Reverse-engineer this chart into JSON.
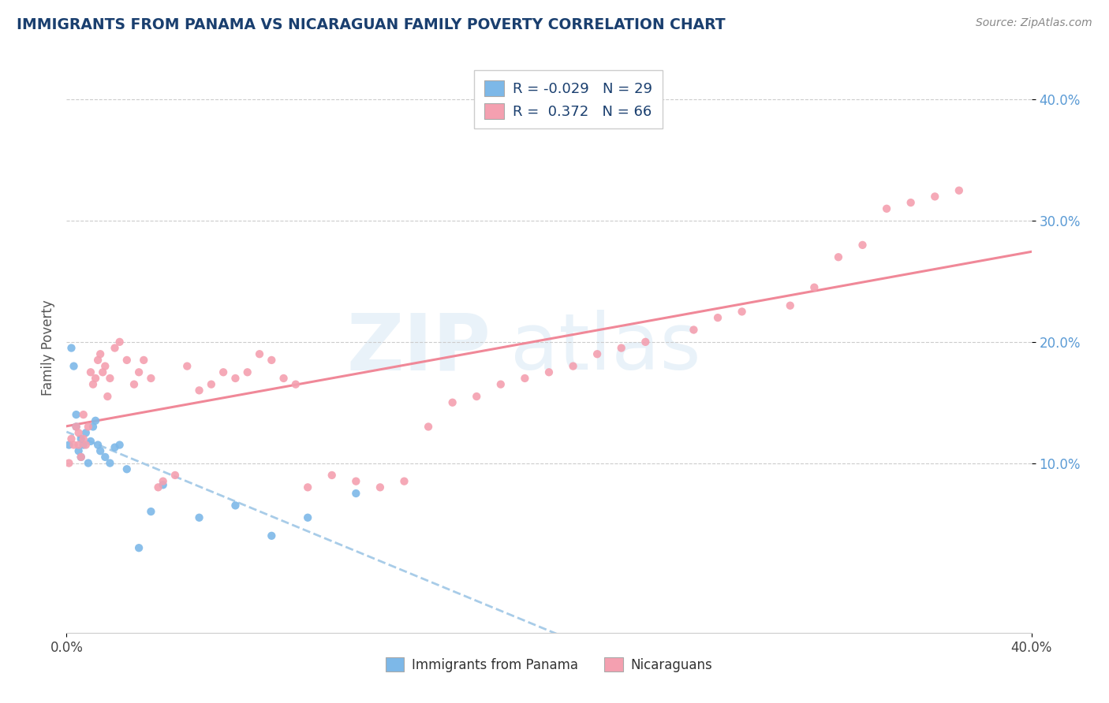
{
  "title": "IMMIGRANTS FROM PANAMA VS NICARAGUAN FAMILY POVERTY CORRELATION CHART",
  "source": "Source: ZipAtlas.com",
  "ylabel": "Family Poverty",
  "legend_label1": "Immigrants from Panama",
  "legend_label2": "Nicaraguans",
  "R1": -0.029,
  "N1": 29,
  "R2": 0.372,
  "N2": 66,
  "color_panama": "#7db8e8",
  "color_nicaragua": "#f4a0b0",
  "color_panama_line": "#a8cce8",
  "color_nicaragua_line": "#f08898",
  "xmin": 0.0,
  "xmax": 0.4,
  "ymin": -0.04,
  "ymax": 0.43,
  "yticks": [
    0.1,
    0.2,
    0.3,
    0.4
  ],
  "ytick_labels": [
    "10.0%",
    "20.0%",
    "30.0%",
    "40.0%"
  ],
  "panama_x": [
    0.001,
    0.002,
    0.003,
    0.004,
    0.004,
    0.005,
    0.006,
    0.006,
    0.007,
    0.008,
    0.009,
    0.01,
    0.011,
    0.012,
    0.013,
    0.014,
    0.016,
    0.018,
    0.02,
    0.022,
    0.025,
    0.03,
    0.035,
    0.04,
    0.055,
    0.07,
    0.085,
    0.1,
    0.12
  ],
  "panama_y": [
    0.115,
    0.195,
    0.18,
    0.14,
    0.13,
    0.11,
    0.12,
    0.105,
    0.115,
    0.125,
    0.1,
    0.118,
    0.13,
    0.135,
    0.115,
    0.11,
    0.105,
    0.1,
    0.113,
    0.115,
    0.095,
    0.03,
    0.06,
    0.082,
    0.055,
    0.065,
    0.04,
    0.055,
    0.075
  ],
  "nicaragua_x": [
    0.001,
    0.002,
    0.003,
    0.004,
    0.005,
    0.005,
    0.006,
    0.007,
    0.007,
    0.008,
    0.009,
    0.01,
    0.011,
    0.012,
    0.013,
    0.014,
    0.015,
    0.016,
    0.017,
    0.018,
    0.02,
    0.022,
    0.025,
    0.028,
    0.03,
    0.032,
    0.035,
    0.038,
    0.04,
    0.045,
    0.05,
    0.055,
    0.06,
    0.065,
    0.07,
    0.075,
    0.08,
    0.085,
    0.09,
    0.095,
    0.1,
    0.11,
    0.12,
    0.13,
    0.14,
    0.15,
    0.16,
    0.17,
    0.18,
    0.19,
    0.2,
    0.21,
    0.22,
    0.23,
    0.24,
    0.26,
    0.27,
    0.28,
    0.3,
    0.31,
    0.32,
    0.33,
    0.34,
    0.35,
    0.36,
    0.37
  ],
  "nicaragua_y": [
    0.1,
    0.12,
    0.115,
    0.13,
    0.115,
    0.125,
    0.105,
    0.14,
    0.12,
    0.115,
    0.13,
    0.175,
    0.165,
    0.17,
    0.185,
    0.19,
    0.175,
    0.18,
    0.155,
    0.17,
    0.195,
    0.2,
    0.185,
    0.165,
    0.175,
    0.185,
    0.17,
    0.08,
    0.085,
    0.09,
    0.18,
    0.16,
    0.165,
    0.175,
    0.17,
    0.175,
    0.19,
    0.185,
    0.17,
    0.165,
    0.08,
    0.09,
    0.085,
    0.08,
    0.085,
    0.13,
    0.15,
    0.155,
    0.165,
    0.17,
    0.175,
    0.18,
    0.19,
    0.195,
    0.2,
    0.21,
    0.22,
    0.225,
    0.23,
    0.245,
    0.27,
    0.28,
    0.31,
    0.315,
    0.32,
    0.325
  ]
}
